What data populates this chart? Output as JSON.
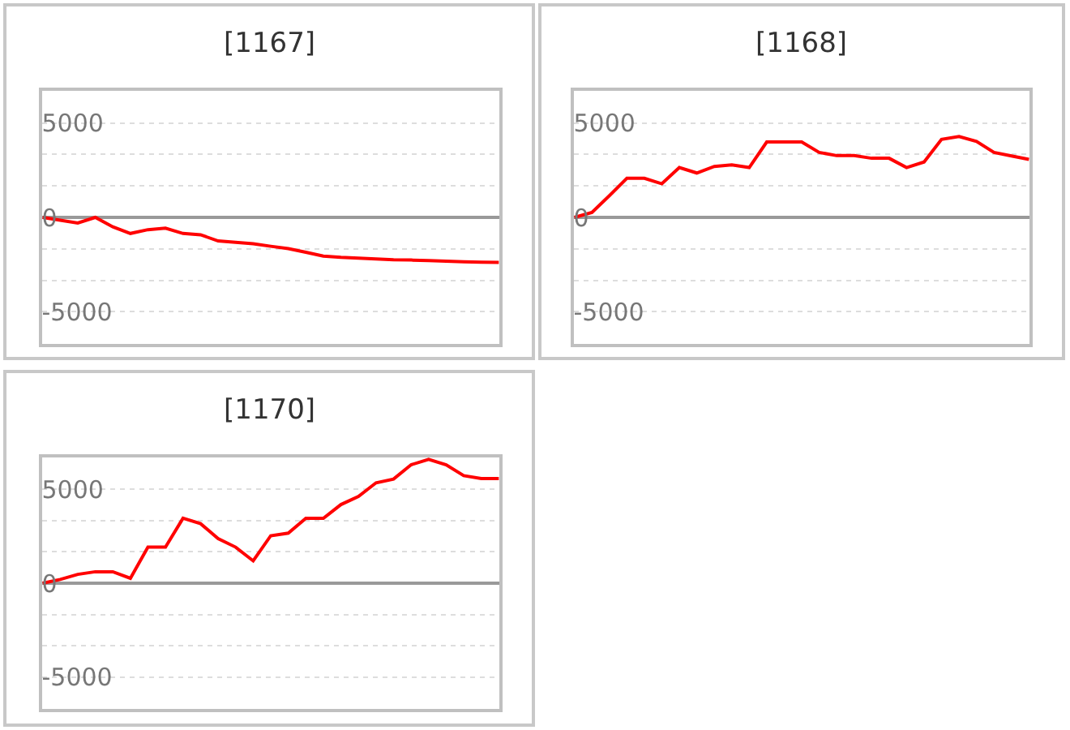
{
  "chart_data": [
    {
      "type": "line",
      "title": "[1167]",
      "categories": [
        null,
        null,
        null,
        null,
        null,
        null,
        null,
        null,
        null,
        null,
        null,
        null,
        null,
        null,
        null,
        null,
        null,
        null,
        null,
        null,
        null,
        null,
        null,
        null,
        null,
        null,
        null
      ],
      "series": [
        {
          "color": "#ff0000",
          "values": [
            0,
            -150,
            -300,
            0,
            -500,
            -850,
            -650,
            -570,
            -850,
            -920,
            -1250,
            -1320,
            -1400,
            -1530,
            -1650,
            -1850,
            -2050,
            -2120,
            -2160,
            -2200,
            -2240,
            -2260,
            -2290,
            -2320,
            -2350,
            -2370,
            -2380
          ]
        }
      ],
      "ylim": [
        -6700,
        6700
      ],
      "yticks": [
        5000,
        {
          "value": 3333,
          "label": null
        },
        {
          "value": 1667,
          "label": null
        },
        0,
        {
          "value": -1667,
          "label": null
        },
        {
          "value": -3333,
          "label": null
        },
        -5000
      ],
      "grid": "y",
      "marker": "none",
      "line_style": "solid"
    },
    {
      "type": "line",
      "title": "[1168]",
      "categories": [
        null,
        null,
        null,
        null,
        null,
        null,
        null,
        null,
        null,
        null,
        null,
        null,
        null,
        null,
        null,
        null,
        null,
        null,
        null,
        null,
        null,
        null,
        null,
        null,
        null,
        null,
        null
      ],
      "series": [
        {
          "color": "#ff0000",
          "values": [
            0,
            260,
            1150,
            2070,
            2070,
            1780,
            2640,
            2350,
            2700,
            2780,
            2640,
            3990,
            3990,
            3990,
            3440,
            3270,
            3270,
            3130,
            3130,
            2640,
            2930,
            4130,
            4280,
            4020,
            3440,
            3250,
            3070
          ]
        }
      ],
      "ylim": [
        -6700,
        6700
      ],
      "yticks": [
        5000,
        {
          "value": 3333,
          "label": null
        },
        {
          "value": 1667,
          "label": null
        },
        0,
        {
          "value": -1667,
          "label": null
        },
        {
          "value": -3333,
          "label": null
        },
        -5000
      ],
      "grid": "y",
      "marker": "none",
      "line_style": "solid"
    },
    {
      "type": "line",
      "title": "[1170]",
      "categories": [
        null,
        null,
        null,
        null,
        null,
        null,
        null,
        null,
        null,
        null,
        null,
        null,
        null,
        null,
        null,
        null,
        null,
        null,
        null,
        null,
        null,
        null,
        null,
        null,
        null,
        null,
        null
      ],
      "series": [
        {
          "color": "#ff0000",
          "values": [
            0,
            200,
            470,
            610,
            610,
            260,
            1920,
            1920,
            3460,
            3170,
            2380,
            1920,
            1190,
            2530,
            2670,
            3460,
            3460,
            4190,
            4620,
            5350,
            5550,
            6310,
            6600,
            6310,
            5730,
            5580,
            5580
          ]
        }
      ],
      "ylim": [
        -6700,
        6700
      ],
      "yticks": [
        5000,
        {
          "value": 3333,
          "label": null
        },
        {
          "value": 1667,
          "label": null
        },
        0,
        {
          "value": -1667,
          "label": null
        },
        {
          "value": -3333,
          "label": null
        },
        -5000
      ],
      "grid": "y",
      "marker": "none",
      "line_style": "solid"
    }
  ]
}
